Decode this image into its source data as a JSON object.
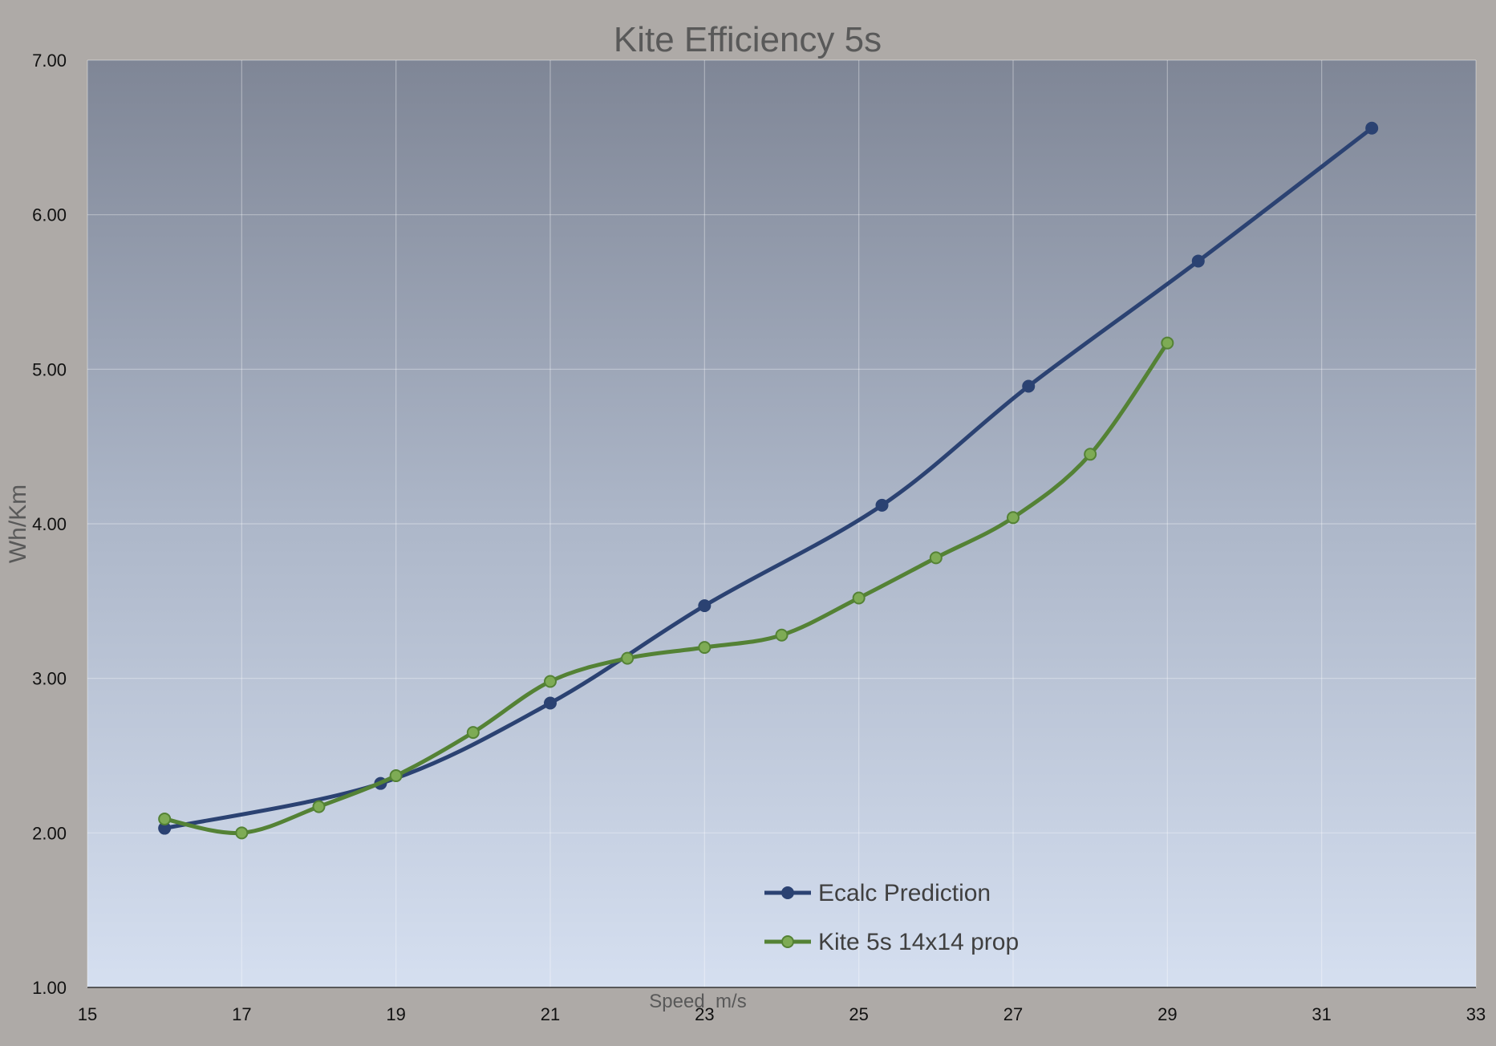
{
  "chart_data": {
    "type": "line",
    "title": "Kite Efficiency 5s",
    "xlabel": "Speed  m/s",
    "ylabel": "Wh/Km",
    "xlim": [
      15,
      33
    ],
    "ylim": [
      1.0,
      7.0
    ],
    "x_ticks": [
      "15",
      "17",
      "19",
      "21",
      "23",
      "25",
      "27",
      "29",
      "31",
      "33"
    ],
    "y_ticks": [
      "1.00",
      "2.00",
      "3.00",
      "4.00",
      "5.00",
      "6.00",
      "7.00"
    ],
    "grid": true,
    "legend_position": "bottom-center",
    "series": [
      {
        "name": "Ecalc Prediction",
        "color": "#2b4272",
        "marker_fill": "#2b4272",
        "points": [
          [
            16.0,
            2.03
          ],
          [
            18.8,
            2.32
          ],
          [
            21.0,
            2.84
          ],
          [
            23.0,
            3.47
          ],
          [
            25.3,
            4.12
          ],
          [
            27.2,
            4.89
          ],
          [
            29.4,
            5.7
          ],
          [
            31.65,
            6.56
          ]
        ]
      },
      {
        "name": "Kite 5s 14x14 prop",
        "color": "#548235",
        "marker_fill": "#7eab55",
        "points": [
          [
            16,
            2.09
          ],
          [
            17,
            2.0
          ],
          [
            18,
            2.17
          ],
          [
            19,
            2.37
          ],
          [
            20,
            2.65
          ],
          [
            21,
            2.98
          ],
          [
            22,
            3.13
          ],
          [
            23,
            3.2
          ],
          [
            24,
            3.28
          ],
          [
            25,
            3.52
          ],
          [
            26,
            3.78
          ],
          [
            27,
            4.04
          ],
          [
            28,
            4.45
          ],
          [
            29,
            5.17
          ]
        ]
      }
    ]
  }
}
